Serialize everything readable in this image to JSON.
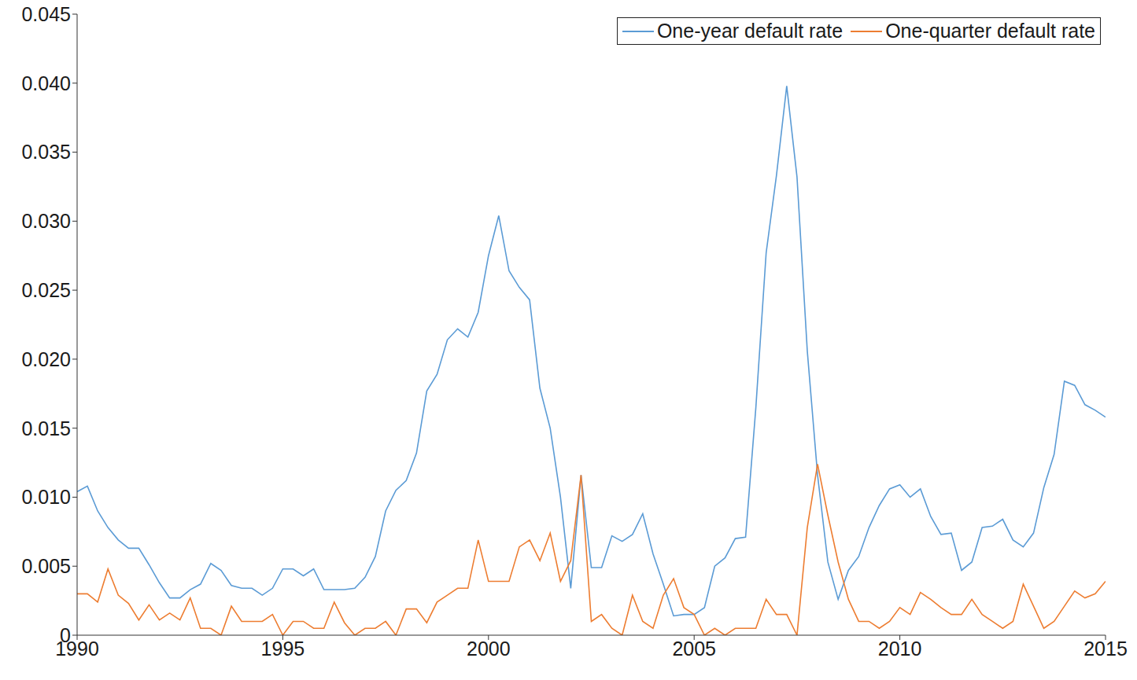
{
  "chart_data": {
    "type": "line",
    "x": [
      1990,
      1990.25,
      1990.5,
      1990.75,
      1991,
      1991.25,
      1991.5,
      1991.75,
      1992,
      1992.25,
      1992.5,
      1992.75,
      1993,
      1993.25,
      1993.5,
      1993.75,
      1994,
      1994.25,
      1994.5,
      1994.75,
      1995,
      1995.25,
      1995.5,
      1995.75,
      1996,
      1996.25,
      1996.5,
      1996.75,
      1997,
      1997.25,
      1997.5,
      1997.75,
      1998,
      1998.25,
      1998.5,
      1998.75,
      1999,
      1999.25,
      1999.5,
      1999.75,
      2000,
      2000.25,
      2000.5,
      2000.75,
      2001,
      2001.25,
      2001.5,
      2001.75,
      2002,
      2002.25,
      2002.5,
      2002.75,
      2003,
      2003.25,
      2003.5,
      2003.75,
      2004,
      2004.25,
      2004.5,
      2004.75,
      2005,
      2005.25,
      2005.5,
      2005.75,
      2006,
      2006.25,
      2006.5,
      2006.75,
      2007,
      2007.25,
      2007.5,
      2007.75,
      2008,
      2008.25,
      2008.5,
      2008.75,
      2009,
      2009.25,
      2009.5,
      2009.75,
      2010,
      2010.25,
      2010.5,
      2010.75,
      2011,
      2011.25,
      2011.5,
      2011.75,
      2012,
      2012.25,
      2012.5,
      2012.75,
      2013,
      2013.25,
      2013.5,
      2013.75,
      2014,
      2014.25,
      2014.5,
      2014.75,
      2015
    ],
    "series": [
      {
        "name": "One-year default rate",
        "color": "#5b9bd5",
        "values": [
          0.0104,
          0.0108,
          0.009,
          0.0078,
          0.0069,
          0.0063,
          0.0063,
          0.0051,
          0.0038,
          0.0027,
          0.0027,
          0.0033,
          0.0037,
          0.0052,
          0.0047,
          0.0036,
          0.0034,
          0.0034,
          0.0029,
          0.0034,
          0.0048,
          0.0048,
          0.0043,
          0.0048,
          0.0033,
          0.0033,
          0.0033,
          0.0034,
          0.0042,
          0.0057,
          0.009,
          0.0105,
          0.0112,
          0.0132,
          0.0177,
          0.0189,
          0.0214,
          0.0222,
          0.0216,
          0.0234,
          0.0275,
          0.0304,
          0.0264,
          0.0252,
          0.0243,
          0.0179,
          0.015,
          0.01,
          0.0034,
          0.0116,
          0.0049,
          0.0049,
          0.0072,
          0.0068,
          0.0073,
          0.0088,
          0.0059,
          0.0037,
          0.0014,
          0.0015,
          0.0015,
          0.002,
          0.005,
          0.0056,
          0.007,
          0.0071,
          0.0165,
          0.0277,
          0.0333,
          0.0398,
          0.0332,
          0.0206,
          0.0116,
          0.0053,
          0.0026,
          0.0047,
          0.0057,
          0.0078,
          0.0094,
          0.0106,
          0.0109,
          0.01,
          0.0106,
          0.0086,
          0.0073,
          0.0074,
          0.0047,
          0.0053,
          0.0078,
          0.0079,
          0.0084,
          0.0069,
          0.0064,
          0.0074,
          0.0107,
          0.0131,
          0.0184,
          0.0181,
          0.0167,
          0.0163,
          0.0158
        ]
      },
      {
        "name": "One-quarter default rate",
        "color": "#ed7d31",
        "values": [
          0.003,
          0.003,
          0.0024,
          0.0048,
          0.0029,
          0.0023,
          0.0011,
          0.0022,
          0.0011,
          0.0016,
          0.0011,
          0.0027,
          0.0005,
          0.0005,
          0,
          0.0021,
          0.001,
          0.001,
          0.001,
          0.0015,
          0,
          0.001,
          0.001,
          0.0005,
          0.0005,
          0.0024,
          0.0009,
          0,
          0.0005,
          0.0005,
          0.001,
          0,
          0.0019,
          0.0019,
          0.0009,
          0.0024,
          0.0029,
          0.0034,
          0.0034,
          0.0069,
          0.0039,
          0.0039,
          0.0039,
          0.0064,
          0.0069,
          0.0054,
          0.0074,
          0.0039,
          0.0054,
          0.0116,
          0.001,
          0.0015,
          0.0005,
          0,
          0.0029,
          0.001,
          0.0005,
          0.0029,
          0.0041,
          0.002,
          0.0015,
          0,
          0.0005,
          0,
          0.0005,
          0.0005,
          0.0005,
          0.0026,
          0.0015,
          0.0015,
          0,
          0.0078,
          0.0124,
          0.0087,
          0.0053,
          0.0026,
          0.001,
          0.001,
          0.0005,
          0.001,
          0.002,
          0.0015,
          0.0031,
          0.0026,
          0.002,
          0.0015,
          0.0015,
          0.0026,
          0.0015,
          0.001,
          0.0005,
          0.001,
          0.0037,
          0.0021,
          0.0005,
          0.001,
          0.0021,
          0.0032,
          0.0027,
          0.003,
          0.0039
        ]
      }
    ],
    "xlim": [
      1990,
      2015
    ],
    "xticks": [
      1990,
      1995,
      2000,
      2005,
      2010,
      2015
    ],
    "ylim": [
      0,
      0.045
    ],
    "yticks": [
      0,
      0.005,
      {
        "value": 0.01,
        "label": "0.010"
      },
      0.015,
      {
        "value": 0.02,
        "label": "0.020"
      },
      0.025,
      {
        "value": 0.03,
        "label": "0.030"
      },
      0.035,
      {
        "value": 0.04,
        "label": "0.040"
      },
      0.045
    ],
    "legend": "upper right",
    "grid": false
  }
}
